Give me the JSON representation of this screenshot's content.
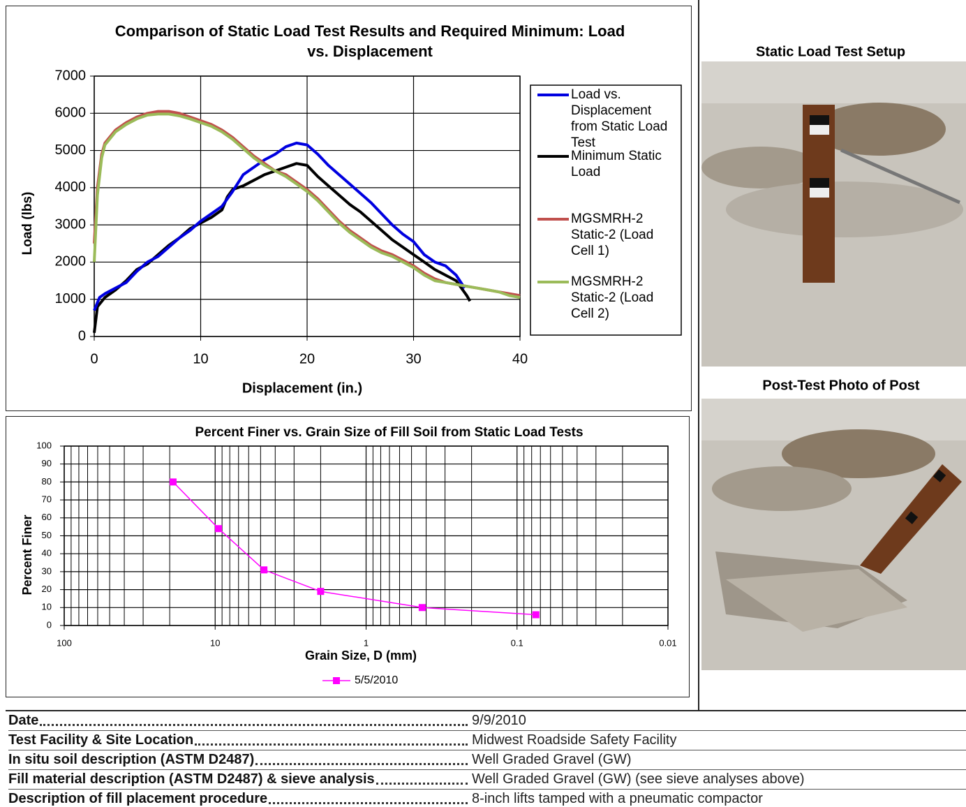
{
  "chart_data": [
    {
      "type": "line",
      "title": "Comparison of Static Load Test Results and Required Minimum: Load vs. Displacement",
      "x_label": "Displacement (in.)",
      "y_label": "Load (lbs)",
      "xlim": [
        0,
        40
      ],
      "xticks": [
        0,
        10,
        20,
        30,
        40
      ],
      "ylim": [
        0,
        7000
      ],
      "yticks": [
        0,
        1000,
        2000,
        3000,
        4000,
        5000,
        6000,
        7000
      ],
      "grid": true,
      "series": [
        {
          "name": "Load vs. Displacement from Static Load Test",
          "color": "#0000e0",
          "x": [
            0,
            0.5,
            1,
            2,
            3,
            4,
            5,
            6,
            7,
            8,
            9,
            10,
            11,
            12,
            13,
            14,
            15,
            16,
            17,
            18,
            19,
            20,
            21,
            22,
            23,
            24,
            25,
            26,
            27,
            28,
            29,
            30,
            31,
            32,
            33,
            34,
            34.8
          ],
          "values": [
            700,
            1050,
            1150,
            1300,
            1450,
            1750,
            2000,
            2150,
            2400,
            2650,
            2850,
            3100,
            3300,
            3500,
            3900,
            4350,
            4550,
            4750,
            4900,
            5100,
            5200,
            5150,
            4900,
            4600,
            4350,
            4100,
            3850,
            3600,
            3300,
            3000,
            2750,
            2550,
            2200,
            2000,
            1900,
            1650,
            1300
          ]
        },
        {
          "name": "Minimum Static Load",
          "color": "#000000",
          "x": [
            0,
            0.3,
            1,
            2,
            3,
            4,
            5,
            6,
            7,
            8,
            9,
            10,
            11,
            12,
            12.5,
            13,
            14,
            15,
            16,
            17,
            18,
            19,
            20,
            21,
            22,
            23,
            24,
            25,
            26,
            27,
            28,
            29,
            30,
            31,
            32,
            33,
            34,
            35,
            35.3
          ],
          "values": [
            100,
            800,
            1050,
            1250,
            1500,
            1800,
            1950,
            2200,
            2450,
            2650,
            2900,
            3050,
            3200,
            3400,
            3750,
            3950,
            4050,
            4200,
            4350,
            4450,
            4550,
            4650,
            4600,
            4300,
            4050,
            3800,
            3550,
            3350,
            3100,
            2850,
            2600,
            2400,
            2200,
            2000,
            1800,
            1650,
            1500,
            1100,
            950
          ]
        },
        {
          "name": "MGSMRH-2 Static-2 (Load Cell 1)",
          "color": "#c0504d",
          "x": [
            0,
            0.3,
            0.7,
            1,
            2,
            3,
            4,
            5,
            6,
            7,
            8,
            9,
            10,
            11,
            12,
            13,
            14,
            15,
            16,
            17,
            18,
            19,
            20,
            21,
            22,
            23,
            24,
            25,
            26,
            27,
            28,
            29,
            30,
            31,
            32,
            33,
            34,
            35,
            36,
            37,
            38,
            39,
            40
          ],
          "values": [
            2500,
            4000,
            4900,
            5200,
            5550,
            5750,
            5900,
            6000,
            6050,
            6050,
            6000,
            5900,
            5800,
            5700,
            5550,
            5350,
            5100,
            4850,
            4650,
            4450,
            4350,
            4150,
            3950,
            3700,
            3400,
            3100,
            2850,
            2650,
            2450,
            2300,
            2200,
            2050,
            1900,
            1700,
            1550,
            1450,
            1400,
            1350,
            1300,
            1250,
            1200,
            1150,
            1100
          ]
        },
        {
          "name": "MGSMRH-2 Static-2 (Load Cell 2)",
          "color": "#9bbb59",
          "x": [
            0,
            0.3,
            0.7,
            1,
            2,
            3,
            4,
            5,
            6,
            7,
            8,
            9,
            10,
            11,
            12,
            13,
            14,
            15,
            16,
            17,
            18,
            19,
            20,
            21,
            22,
            23,
            24,
            25,
            26,
            27,
            28,
            29,
            30,
            31,
            32,
            33,
            34,
            35,
            36,
            37,
            38,
            39,
            40
          ],
          "values": [
            2000,
            3800,
            4800,
            5150,
            5500,
            5700,
            5850,
            5950,
            5980,
            5980,
            5930,
            5850,
            5750,
            5650,
            5500,
            5300,
            5050,
            4800,
            4600,
            4450,
            4300,
            4100,
            3900,
            3650,
            3350,
            3050,
            2800,
            2600,
            2400,
            2250,
            2150,
            2000,
            1850,
            1650,
            1500,
            1450,
            1400,
            1350,
            1300,
            1250,
            1200,
            1100,
            1050
          ]
        }
      ]
    },
    {
      "type": "line",
      "title": "Percent Finer vs. Grain Size of Fill Soil from Static Load Tests",
      "x_label": "Grain Size, D (mm)",
      "y_label": "Percent Finer",
      "x_scale": "log",
      "xlim": [
        100,
        0.01
      ],
      "xticks": [
        100,
        10,
        1,
        0.1,
        0.01
      ],
      "xminorticks": [
        90,
        80,
        70,
        60,
        50,
        40,
        30,
        20,
        9,
        8,
        7,
        6,
        5,
        4,
        3,
        2,
        0.9,
        0.8,
        0.7,
        0.6,
        0.5,
        0.4,
        0.3,
        0.2,
        0.09,
        0.08,
        0.07,
        0.06,
        0.05,
        0.04,
        0.03,
        0.02
      ],
      "ylim": [
        0,
        100
      ],
      "yticks": [
        0,
        10,
        20,
        30,
        40,
        50,
        60,
        70,
        80,
        90,
        100
      ],
      "grid": true,
      "marker": "square",
      "series": [
        {
          "name": "5/5/2010",
          "color": "#ff00ff",
          "x": [
            19,
            9.5,
            4.75,
            2,
            0.425,
            0.075
          ],
          "values": [
            80,
            54,
            31,
            19,
            10,
            6
          ]
        }
      ]
    }
  ],
  "photos": [
    {
      "title": "Static Load Test Setup"
    },
    {
      "title": "Post-Test Photo of Post"
    }
  ],
  "details": {
    "rows": [
      {
        "label": "Date",
        "value": "9/9/2010"
      },
      {
        "label": "Test Facility & Site Location",
        "value": "Midwest Roadside Safety Facility"
      },
      {
        "label": "In situ soil description (ASTM D2487)",
        "value": "Well Graded Gravel (GW)"
      },
      {
        "label": "Fill material description (ASTM D2487) & sieve analysis",
        "value": "Well Graded Gravel (GW) (see sieve analyses above)"
      },
      {
        "label": "Description of fill placement procedure",
        "value": "8-inch lifts tamped with a pneumatic compactor"
      }
    ]
  }
}
